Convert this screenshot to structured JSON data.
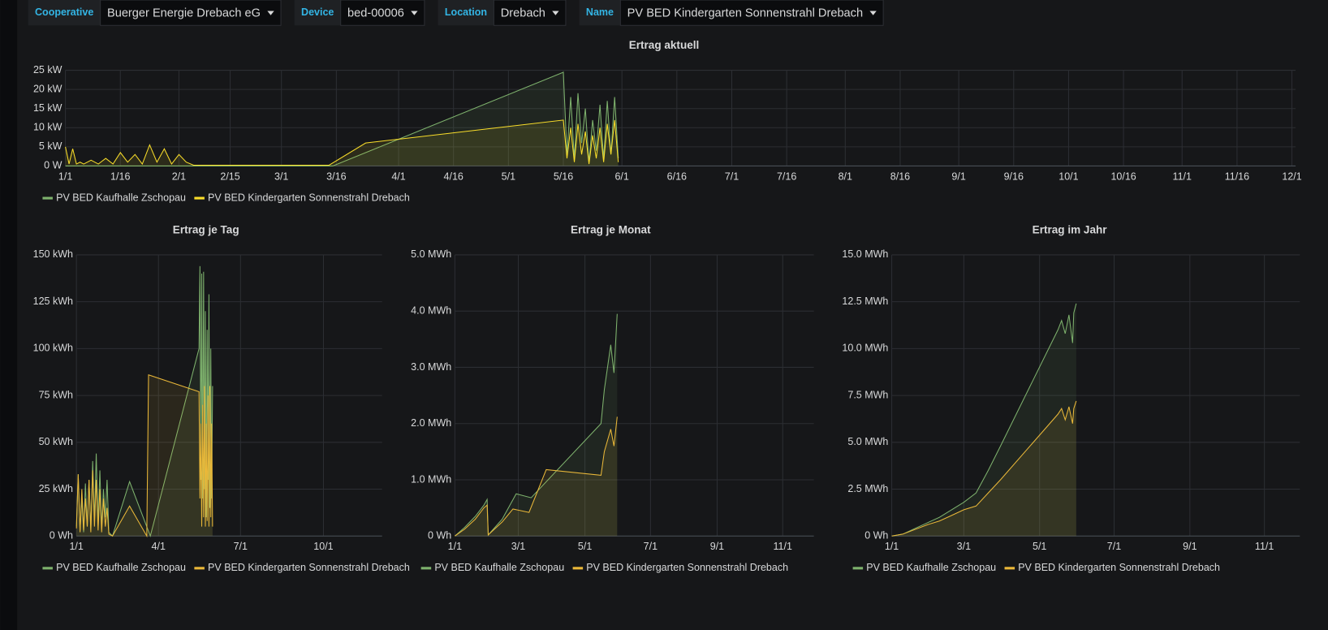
{
  "filters": [
    {
      "label": "Cooperative",
      "value": "Buerger Energie Drebach eG"
    },
    {
      "label": "Device",
      "value": "bed-00006"
    },
    {
      "label": "Location",
      "value": "Drebach"
    },
    {
      "label": "Name",
      "value": "PV BED Kindergarten Sonnenstrahl Drebach"
    }
  ],
  "chart_data": [
    {
      "type": "line",
      "title": "Ertrag aktuell",
      "xlim": [
        1,
        337
      ],
      "xticks": [
        {
          "value": 1,
          "label": "1/1"
        },
        {
          "value": 16,
          "label": "1/16"
        },
        {
          "value": 32,
          "label": "2/1"
        },
        {
          "value": 46,
          "label": "2/15"
        },
        {
          "value": 60,
          "label": "3/1"
        },
        {
          "value": 75,
          "label": "3/16"
        },
        {
          "value": 92,
          "label": "4/1"
        },
        {
          "value": 107,
          "label": "4/16"
        },
        {
          "value": 122,
          "label": "5/1"
        },
        {
          "value": 137,
          "label": "5/16"
        },
        {
          "value": 153,
          "label": "6/1"
        },
        {
          "value": 168,
          "label": "6/16"
        },
        {
          "value": 183,
          "label": "7/1"
        },
        {
          "value": 198,
          "label": "7/16"
        },
        {
          "value": 214,
          "label": "8/1"
        },
        {
          "value": 229,
          "label": "8/16"
        },
        {
          "value": 245,
          "label": "9/1"
        },
        {
          "value": 260,
          "label": "9/16"
        },
        {
          "value": 275,
          "label": "10/1"
        },
        {
          "value": 290,
          "label": "10/16"
        },
        {
          "value": 306,
          "label": "11/1"
        },
        {
          "value": 321,
          "label": "11/16"
        },
        {
          "value": 336,
          "label": "12/1"
        }
      ],
      "ylim": [
        0,
        25
      ],
      "yticks": [
        {
          "value": 0,
          "label": "0 W"
        },
        {
          "value": 5,
          "label": "5 kW"
        },
        {
          "value": 10,
          "label": "10 kW"
        },
        {
          "value": 15,
          "label": "15 kW"
        },
        {
          "value": 20,
          "label": "20 kW"
        },
        {
          "value": 25,
          "label": "25 kW"
        }
      ],
      "grid": true,
      "series": [
        {
          "name": "PV BED Kaufhalle Zschopau",
          "color": "#7eb26d",
          "x": [
            1,
            74,
            137,
            138,
            139,
            140,
            141,
            142,
            143,
            144,
            145,
            146,
            147,
            148,
            149,
            150,
            151,
            152
          ],
          "values": [
            0,
            0,
            24.5,
            3,
            18,
            2,
            19,
            6,
            15,
            1,
            12,
            4,
            16,
            2,
            17,
            3,
            18,
            2
          ]
        },
        {
          "name": "PV BED Kindergarten Sonnenstrahl Drebach",
          "color": "#fade2a",
          "x": [
            1,
            2,
            3,
            4,
            5,
            6,
            8,
            10,
            12,
            14,
            16,
            18,
            20,
            22,
            24,
            26,
            28,
            30,
            32,
            34,
            36,
            73,
            83,
            137,
            138,
            139,
            140,
            141,
            142,
            143,
            144,
            145,
            146,
            147,
            148,
            149,
            150,
            151,
            152
          ],
          "values": [
            5,
            0.5,
            4.5,
            0.5,
            1,
            0.5,
            1.5,
            0.5,
            2,
            0.5,
            3.5,
            1,
            3,
            0.5,
            5.5,
            1,
            4.5,
            0.5,
            3,
            1,
            0.2,
            0.2,
            6,
            12,
            2,
            10,
            1,
            11,
            3,
            9,
            0.5,
            8,
            2,
            10,
            1,
            11,
            3,
            12,
            1
          ]
        }
      ]
    },
    {
      "type": "line",
      "title": "Ertrag je Tag",
      "xlim": [
        1,
        340
      ],
      "xticks": [
        {
          "value": 1,
          "label": "1/1"
        },
        {
          "value": 92,
          "label": "4/1"
        },
        {
          "value": 183,
          "label": "7/1"
        },
        {
          "value": 275,
          "label": "10/1"
        }
      ],
      "ylim": [
        0,
        150
      ],
      "yticks": [
        {
          "value": 0,
          "label": "0 Wh"
        },
        {
          "value": 25,
          "label": "25 kWh"
        },
        {
          "value": 50,
          "label": "50 kWh"
        },
        {
          "value": 75,
          "label": "75 kWh"
        },
        {
          "value": 100,
          "label": "100 kWh"
        },
        {
          "value": 125,
          "label": "125 kWh"
        },
        {
          "value": 150,
          "label": "150 kWh"
        }
      ],
      "grid": true,
      "series": [
        {
          "name": "PV BED Kaufhalle Zschopau",
          "color": "#7eb26d",
          "x": [
            1,
            3,
            5,
            7,
            9,
            11,
            13,
            15,
            17,
            19,
            21,
            23,
            25,
            27,
            29,
            31,
            33,
            35,
            37,
            41,
            60,
            83,
            137,
            138,
            139,
            140,
            141,
            142,
            143,
            144,
            145,
            146,
            147,
            148,
            149,
            150,
            151,
            152
          ],
          "values": [
            5,
            33,
            3,
            20,
            2,
            28,
            5,
            30,
            3,
            40,
            8,
            44,
            6,
            35,
            4,
            25,
            10,
            30,
            2,
            0,
            29,
            0,
            100,
            144,
            30,
            140,
            20,
            141,
            25,
            120,
            10,
            110,
            30,
            129,
            15,
            100,
            20,
            80
          ]
        },
        {
          "name": "PV BED Kindergarten Sonnenstrahl Drebach",
          "color": "#eab839",
          "x": [
            1,
            3,
            5,
            7,
            9,
            11,
            13,
            15,
            17,
            19,
            21,
            23,
            25,
            27,
            29,
            31,
            33,
            35,
            37,
            41,
            60,
            79,
            81,
            137,
            138,
            139,
            140,
            141,
            142,
            143,
            144,
            145,
            146,
            147,
            148,
            149,
            150,
            151,
            152
          ],
          "values": [
            4,
            33,
            2,
            25,
            3,
            20,
            5,
            30,
            2,
            35,
            5,
            30,
            3,
            25,
            2,
            20,
            5,
            15,
            1,
            0,
            16,
            0,
            86,
            77,
            20,
            60,
            5,
            70,
            10,
            80,
            5,
            60,
            8,
            75,
            5,
            80,
            10,
            60,
            5
          ]
        }
      ]
    },
    {
      "type": "line",
      "title": "Ertrag je Monat",
      "xlim": [
        1,
        335
      ],
      "xticks": [
        {
          "value": 1,
          "label": "1/1"
        },
        {
          "value": 60,
          "label": "3/1"
        },
        {
          "value": 122,
          "label": "5/1"
        },
        {
          "value": 183,
          "label": "7/1"
        },
        {
          "value": 245,
          "label": "9/1"
        },
        {
          "value": 306,
          "label": "11/1"
        }
      ],
      "ylim": [
        0,
        5
      ],
      "yticks": [
        {
          "value": 0,
          "label": "0 Wh"
        },
        {
          "value": 1,
          "label": "1.0 MWh"
        },
        {
          "value": 2,
          "label": "2.0 MWh"
        },
        {
          "value": 3,
          "label": "3.0 MWh"
        },
        {
          "value": 4,
          "label": "4.0 MWh"
        },
        {
          "value": 5,
          "label": "5.0 MWh"
        }
      ],
      "grid": true,
      "series": [
        {
          "name": "PV BED Kaufhalle Zschopau",
          "color": "#7eb26d",
          "x": [
            1,
            10,
            20,
            28,
            31,
            32,
            45,
            58,
            72,
            137,
            140,
            143,
            146,
            149,
            152
          ],
          "values": [
            0,
            0.15,
            0.35,
            0.55,
            0.65,
            0.02,
            0.3,
            0.75,
            0.68,
            2.0,
            2.6,
            3.0,
            3.4,
            2.9,
            3.95
          ]
        },
        {
          "name": "PV BED Kindergarten Sonnenstrahl Drebach",
          "color": "#eab839",
          "x": [
            1,
            10,
            20,
            28,
            31,
            32,
            45,
            55,
            70,
            86,
            137,
            140,
            143,
            146,
            149,
            152
          ],
          "values": [
            0,
            0.12,
            0.3,
            0.5,
            0.55,
            0.02,
            0.25,
            0.48,
            0.42,
            1.18,
            1.08,
            1.5,
            1.7,
            1.9,
            1.6,
            2.12
          ]
        }
      ]
    },
    {
      "type": "line",
      "title": "Ertrag im Jahr",
      "xlim": [
        1,
        335
      ],
      "xticks": [
        {
          "value": 1,
          "label": "1/1"
        },
        {
          "value": 60,
          "label": "3/1"
        },
        {
          "value": 122,
          "label": "5/1"
        },
        {
          "value": 183,
          "label": "7/1"
        },
        {
          "value": 245,
          "label": "9/1"
        },
        {
          "value": 306,
          "label": "11/1"
        }
      ],
      "ylim": [
        0,
        15
      ],
      "yticks": [
        {
          "value": 0,
          "label": "0 Wh"
        },
        {
          "value": 2.5,
          "label": "2.5 MWh"
        },
        {
          "value": 5,
          "label": "5.0 MWh"
        },
        {
          "value": 7.5,
          "label": "7.5 MWh"
        },
        {
          "value": 10,
          "label": "10.0 MWh"
        },
        {
          "value": 12.5,
          "label": "12.5 MWh"
        },
        {
          "value": 15,
          "label": "15.0 MWh"
        }
      ],
      "grid": true,
      "series": [
        {
          "name": "PV BED Kaufhalle Zschopau",
          "color": "#7eb26d",
          "x": [
            1,
            10,
            20,
            30,
            40,
            50,
            60,
            70,
            80,
            90,
            137,
            140,
            143,
            146,
            149,
            150,
            152
          ],
          "values": [
            0,
            0.1,
            0.4,
            0.7,
            1.0,
            1.4,
            1.8,
            2.3,
            3.5,
            4.8,
            11.0,
            11.5,
            10.8,
            11.8,
            10.3,
            11.9,
            12.4
          ]
        },
        {
          "name": "PV BED Kindergarten Sonnenstrahl Drebach",
          "color": "#eab839",
          "x": [
            1,
            10,
            20,
            30,
            40,
            50,
            60,
            70,
            80,
            90,
            137,
            140,
            143,
            146,
            149,
            150,
            152
          ],
          "values": [
            0,
            0.1,
            0.35,
            0.6,
            0.8,
            1.1,
            1.4,
            1.6,
            2.3,
            3.0,
            6.5,
            6.8,
            6.2,
            6.9,
            6.0,
            6.8,
            7.2
          ]
        }
      ]
    }
  ]
}
